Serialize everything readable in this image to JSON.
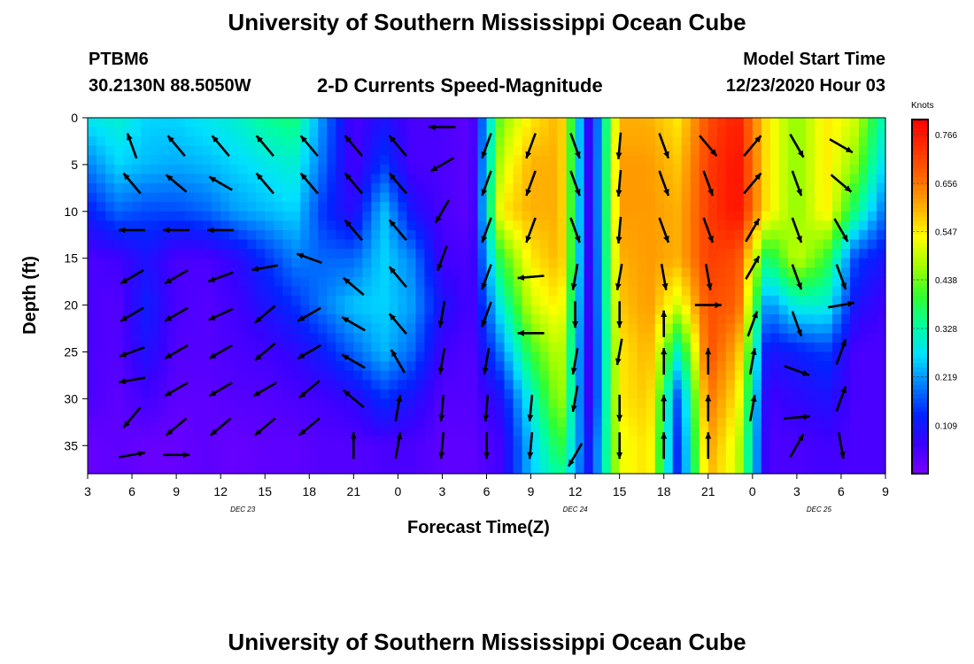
{
  "header": {
    "title": "University of Southern Mississippi Ocean Cube",
    "station": "PTBM6",
    "coords": "30.2130N 88.5050W",
    "subtitle": "2-D Currents Speed-Magnitude",
    "model_label": "Model Start Time",
    "model_time": "12/23/2020 Hour 03"
  },
  "footer": {
    "title": "University of Southern Mississippi Ocean Cube"
  },
  "colorbar": {
    "unit": "Knots",
    "ticks": [
      "0.766",
      "0.656",
      "0.547",
      "0.438",
      "0.328",
      "0.219",
      "0.109"
    ],
    "colors": [
      "#7a00ff",
      "#3a00ff",
      "#0024ff",
      "#0080ff",
      "#00e0ff",
      "#00ffa0",
      "#30ff30",
      "#a0ff00",
      "#ffff00",
      "#ffb000",
      "#ff6a00",
      "#ff3000",
      "#ff0000"
    ]
  },
  "chart_data": {
    "type": "heatmap",
    "title": "2-D Currents Speed-Magnitude",
    "xlabel": "Forecast Time(Z)",
    "ylabel": "Depth (ft)",
    "x_ticks": [
      "3",
      "6",
      "9",
      "12",
      "15",
      "18",
      "21",
      "0",
      "3",
      "6",
      "9",
      "12",
      "15",
      "18",
      "21",
      "0",
      "3",
      "6",
      "9"
    ],
    "x_dates": [
      "DEC 23",
      "DEC 24",
      "DEC 25"
    ],
    "y_ticks": [
      "0",
      "5",
      "10",
      "15",
      "20",
      "25",
      "30",
      "35"
    ],
    "xlim": [
      0,
      54
    ],
    "ylim": [
      0,
      38
    ],
    "vmin": 0,
    "vmax": 0.8,
    "x_hours": [
      0,
      2,
      4,
      6,
      8,
      10,
      12,
      14,
      16,
      18,
      20,
      22,
      24,
      26,
      28,
      30,
      32,
      34,
      36,
      38,
      40,
      42,
      44,
      46,
      48,
      50,
      52,
      54
    ],
    "depths_ft": [
      0,
      5,
      10,
      15,
      20,
      25,
      30,
      35,
      38
    ],
    "speed_knots": [
      [
        0.28,
        0.3,
        0.26,
        0.26,
        0.28,
        0.3,
        0.34,
        0.36,
        0.2,
        0.05,
        0.1,
        0.05,
        0.05,
        0.03,
        0.45,
        0.55,
        0.6,
        0.05,
        0.6,
        0.6,
        0.55,
        0.7,
        0.76,
        0.55,
        0.45,
        0.55,
        0.5,
        0.3
      ],
      [
        0.2,
        0.26,
        0.24,
        0.23,
        0.24,
        0.26,
        0.28,
        0.3,
        0.18,
        0.05,
        0.15,
        0.05,
        0.05,
        0.03,
        0.5,
        0.6,
        0.6,
        0.05,
        0.62,
        0.62,
        0.58,
        0.72,
        0.78,
        0.55,
        0.45,
        0.55,
        0.45,
        0.25
      ],
      [
        0.12,
        0.18,
        0.16,
        0.16,
        0.18,
        0.22,
        0.24,
        0.26,
        0.14,
        0.08,
        0.25,
        0.1,
        0.05,
        0.03,
        0.55,
        0.6,
        0.6,
        0.05,
        0.62,
        0.62,
        0.6,
        0.72,
        0.78,
        0.55,
        0.45,
        0.55,
        0.35,
        0.18
      ],
      [
        0.05,
        0.06,
        0.1,
        0.05,
        0.05,
        0.08,
        0.14,
        0.2,
        0.18,
        0.18,
        0.26,
        0.2,
        0.06,
        0.05,
        0.4,
        0.55,
        0.6,
        0.05,
        0.6,
        0.62,
        0.6,
        0.72,
        0.7,
        0.35,
        0.5,
        0.4,
        0.15,
        0.1
      ],
      [
        0.05,
        0.04,
        0.12,
        0.05,
        0.04,
        0.06,
        0.1,
        0.14,
        0.2,
        0.25,
        0.26,
        0.22,
        0.1,
        0.05,
        0.3,
        0.5,
        0.55,
        0.05,
        0.58,
        0.62,
        0.5,
        0.7,
        0.68,
        0.2,
        0.3,
        0.3,
        0.1,
        0.06
      ],
      [
        0.05,
        0.04,
        0.1,
        0.04,
        0.04,
        0.05,
        0.06,
        0.08,
        0.12,
        0.18,
        0.24,
        0.18,
        0.06,
        0.04,
        0.2,
        0.4,
        0.5,
        0.05,
        0.55,
        0.6,
        0.3,
        0.7,
        0.6,
        0.1,
        0.12,
        0.15,
        0.05,
        0.05
      ],
      [
        0.05,
        0.03,
        0.06,
        0.03,
        0.03,
        0.04,
        0.04,
        0.05,
        0.06,
        0.08,
        0.14,
        0.1,
        0.04,
        0.04,
        0.1,
        0.3,
        0.48,
        0.05,
        0.55,
        0.58,
        0.15,
        0.66,
        0.55,
        0.06,
        0.08,
        0.1,
        0.05,
        0.05
      ],
      [
        0.02,
        0.03,
        0.02,
        0.02,
        0.03,
        0.02,
        0.03,
        0.03,
        0.04,
        0.04,
        0.05,
        0.05,
        0.03,
        0.03,
        0.06,
        0.25,
        0.4,
        0.1,
        0.52,
        0.56,
        0.12,
        0.62,
        0.5,
        0.05,
        0.05,
        0.06,
        0.05,
        0.05
      ],
      [
        0.02,
        0.03,
        0.02,
        0.02,
        0.03,
        0.02,
        0.03,
        0.03,
        0.04,
        0.04,
        0.05,
        0.05,
        0.03,
        0.03,
        0.06,
        0.25,
        0.35,
        0.1,
        0.52,
        0.56,
        0.12,
        0.6,
        0.5,
        0.05,
        0.05,
        0.06,
        0.05,
        0.05
      ]
    ],
    "vectors": [
      {
        "t": 3,
        "d": 3,
        "dir": 340
      },
      {
        "t": 3,
        "d": 7,
        "dir": 320
      },
      {
        "t": 3,
        "d": 12,
        "dir": 270
      },
      {
        "t": 3,
        "d": 17,
        "dir": 240
      },
      {
        "t": 3,
        "d": 21,
        "dir": 240
      },
      {
        "t": 3,
        "d": 25,
        "dir": 250
      },
      {
        "t": 3,
        "d": 28,
        "dir": 260
      },
      {
        "t": 3,
        "d": 32,
        "dir": 220
      },
      {
        "t": 3,
        "d": 36,
        "dir": 80
      },
      {
        "t": 6,
        "d": 3,
        "dir": 320
      },
      {
        "t": 6,
        "d": 7,
        "dir": 310
      },
      {
        "t": 6,
        "d": 12,
        "dir": 270
      },
      {
        "t": 6,
        "d": 17,
        "dir": 240
      },
      {
        "t": 6,
        "d": 21,
        "dir": 240
      },
      {
        "t": 6,
        "d": 25,
        "dir": 240
      },
      {
        "t": 6,
        "d": 29,
        "dir": 240
      },
      {
        "t": 6,
        "d": 33,
        "dir": 230
      },
      {
        "t": 6,
        "d": 36,
        "dir": 90
      },
      {
        "t": 9,
        "d": 3,
        "dir": 320
      },
      {
        "t": 9,
        "d": 7,
        "dir": 300
      },
      {
        "t": 9,
        "d": 12,
        "dir": 270
      },
      {
        "t": 9,
        "d": 17,
        "dir": 250
      },
      {
        "t": 9,
        "d": 21,
        "dir": 245
      },
      {
        "t": 9,
        "d": 25,
        "dir": 240
      },
      {
        "t": 9,
        "d": 29,
        "dir": 240
      },
      {
        "t": 9,
        "d": 33,
        "dir": 230
      },
      {
        "t": 12,
        "d": 3,
        "dir": 320
      },
      {
        "t": 12,
        "d": 7,
        "dir": 320
      },
      {
        "t": 12,
        "d": 16,
        "dir": 260
      },
      {
        "t": 12,
        "d": 21,
        "dir": 230
      },
      {
        "t": 12,
        "d": 25,
        "dir": 230
      },
      {
        "t": 12,
        "d": 29,
        "dir": 240
      },
      {
        "t": 12,
        "d": 33,
        "dir": 230
      },
      {
        "t": 15,
        "d": 3,
        "dir": 320
      },
      {
        "t": 15,
        "d": 7,
        "dir": 320
      },
      {
        "t": 15,
        "d": 15,
        "dir": 290
      },
      {
        "t": 15,
        "d": 21,
        "dir": 240
      },
      {
        "t": 15,
        "d": 25,
        "dir": 240
      },
      {
        "t": 15,
        "d": 29,
        "dir": 230
      },
      {
        "t": 15,
        "d": 33,
        "dir": 230
      },
      {
        "t": 18,
        "d": 3,
        "dir": 320
      },
      {
        "t": 18,
        "d": 7,
        "dir": 320
      },
      {
        "t": 18,
        "d": 12,
        "dir": 320
      },
      {
        "t": 18,
        "d": 18,
        "dir": 310
      },
      {
        "t": 18,
        "d": 22,
        "dir": 300
      },
      {
        "t": 18,
        "d": 26,
        "dir": 300
      },
      {
        "t": 18,
        "d": 30,
        "dir": 310
      },
      {
        "t": 18,
        "d": 35,
        "dir": 0
      },
      {
        "t": 21,
        "d": 3,
        "dir": 320
      },
      {
        "t": 21,
        "d": 7,
        "dir": 320
      },
      {
        "t": 21,
        "d": 12,
        "dir": 320
      },
      {
        "t": 21,
        "d": 17,
        "dir": 320
      },
      {
        "t": 21,
        "d": 22,
        "dir": 320
      },
      {
        "t": 21,
        "d": 26,
        "dir": 330
      },
      {
        "t": 21,
        "d": 31,
        "dir": 10
      },
      {
        "t": 21,
        "d": 35,
        "dir": 10
      },
      {
        "t": 24,
        "d": 1,
        "dir": 270
      },
      {
        "t": 24,
        "d": 5,
        "dir": 240
      },
      {
        "t": 24,
        "d": 10,
        "dir": 210
      },
      {
        "t": 24,
        "d": 15,
        "dir": 200
      },
      {
        "t": 24,
        "d": 21,
        "dir": 190
      },
      {
        "t": 24,
        "d": 26,
        "dir": 190
      },
      {
        "t": 24,
        "d": 31,
        "dir": 185
      },
      {
        "t": 24,
        "d": 35,
        "dir": 185
      },
      {
        "t": 27,
        "d": 3,
        "dir": 200
      },
      {
        "t": 27,
        "d": 7,
        "dir": 200
      },
      {
        "t": 27,
        "d": 12,
        "dir": 200
      },
      {
        "t": 27,
        "d": 17,
        "dir": 200
      },
      {
        "t": 27,
        "d": 21,
        "dir": 200
      },
      {
        "t": 27,
        "d": 26,
        "dir": 190
      },
      {
        "t": 27,
        "d": 31,
        "dir": 185
      },
      {
        "t": 27,
        "d": 35,
        "dir": 180
      },
      {
        "t": 30,
        "d": 3,
        "dir": 200
      },
      {
        "t": 30,
        "d": 7,
        "dir": 200
      },
      {
        "t": 30,
        "d": 12,
        "dir": 200
      },
      {
        "t": 30,
        "d": 17,
        "dir": 265
      },
      {
        "t": 30,
        "d": 23,
        "dir": 270
      },
      {
        "t": 30,
        "d": 31,
        "dir": 185
      },
      {
        "t": 30,
        "d": 35,
        "dir": 185
      },
      {
        "t": 33,
        "d": 3,
        "dir": 160
      },
      {
        "t": 33,
        "d": 7,
        "dir": 160
      },
      {
        "t": 33,
        "d": 12,
        "dir": 160
      },
      {
        "t": 33,
        "d": 17,
        "dir": 190
      },
      {
        "t": 33,
        "d": 21,
        "dir": 180
      },
      {
        "t": 33,
        "d": 26,
        "dir": 190
      },
      {
        "t": 33,
        "d": 30,
        "dir": 190
      },
      {
        "t": 33,
        "d": 36,
        "dir": 210
      },
      {
        "t": 36,
        "d": 3,
        "dir": 185
      },
      {
        "t": 36,
        "d": 7,
        "dir": 185
      },
      {
        "t": 36,
        "d": 12,
        "dir": 185
      },
      {
        "t": 36,
        "d": 17,
        "dir": 190
      },
      {
        "t": 36,
        "d": 21,
        "dir": 180
      },
      {
        "t": 36,
        "d": 25,
        "dir": 190
      },
      {
        "t": 36,
        "d": 31,
        "dir": 180
      },
      {
        "t": 36,
        "d": 35,
        "dir": 180
      },
      {
        "t": 39,
        "d": 3,
        "dir": 160
      },
      {
        "t": 39,
        "d": 7,
        "dir": 160
      },
      {
        "t": 39,
        "d": 12,
        "dir": 160
      },
      {
        "t": 39,
        "d": 17,
        "dir": 170
      },
      {
        "t": 39,
        "d": 22,
        "dir": 0
      },
      {
        "t": 39,
        "d": 26,
        "dir": 0
      },
      {
        "t": 39,
        "d": 31,
        "dir": 0
      },
      {
        "t": 39,
        "d": 35,
        "dir": 0
      },
      {
        "t": 42,
        "d": 3,
        "dir": 140
      },
      {
        "t": 42,
        "d": 7,
        "dir": 160
      },
      {
        "t": 42,
        "d": 12,
        "dir": 160
      },
      {
        "t": 42,
        "d": 17,
        "dir": 170
      },
      {
        "t": 42,
        "d": 20,
        "dir": 90
      },
      {
        "t": 42,
        "d": 26,
        "dir": 0
      },
      {
        "t": 42,
        "d": 31,
        "dir": 0
      },
      {
        "t": 42,
        "d": 35,
        "dir": 0
      },
      {
        "t": 45,
        "d": 3,
        "dir": 40
      },
      {
        "t": 45,
        "d": 7,
        "dir": 40
      },
      {
        "t": 45,
        "d": 12,
        "dir": 30
      },
      {
        "t": 45,
        "d": 16,
        "dir": 30
      },
      {
        "t": 45,
        "d": 22,
        "dir": 20
      },
      {
        "t": 45,
        "d": 26,
        "dir": 10
      },
      {
        "t": 45,
        "d": 31,
        "dir": 10
      },
      {
        "t": 48,
        "d": 3,
        "dir": 150
      },
      {
        "t": 48,
        "d": 7,
        "dir": 160
      },
      {
        "t": 48,
        "d": 12,
        "dir": 160
      },
      {
        "t": 48,
        "d": 17,
        "dir": 160
      },
      {
        "t": 48,
        "d": 22,
        "dir": 160
      },
      {
        "t": 48,
        "d": 27,
        "dir": 110
      },
      {
        "t": 48,
        "d": 32,
        "dir": 85
      },
      {
        "t": 48,
        "d": 35,
        "dir": 30
      },
      {
        "t": 51,
        "d": 3,
        "dir": 120
      },
      {
        "t": 51,
        "d": 7,
        "dir": 130
      },
      {
        "t": 51,
        "d": 12,
        "dir": 150
      },
      {
        "t": 51,
        "d": 17,
        "dir": 160
      },
      {
        "t": 51,
        "d": 20,
        "dir": 80
      },
      {
        "t": 51,
        "d": 25,
        "dir": 20
      },
      {
        "t": 51,
        "d": 30,
        "dir": 20
      },
      {
        "t": 51,
        "d": 35,
        "dir": 170
      }
    ]
  }
}
